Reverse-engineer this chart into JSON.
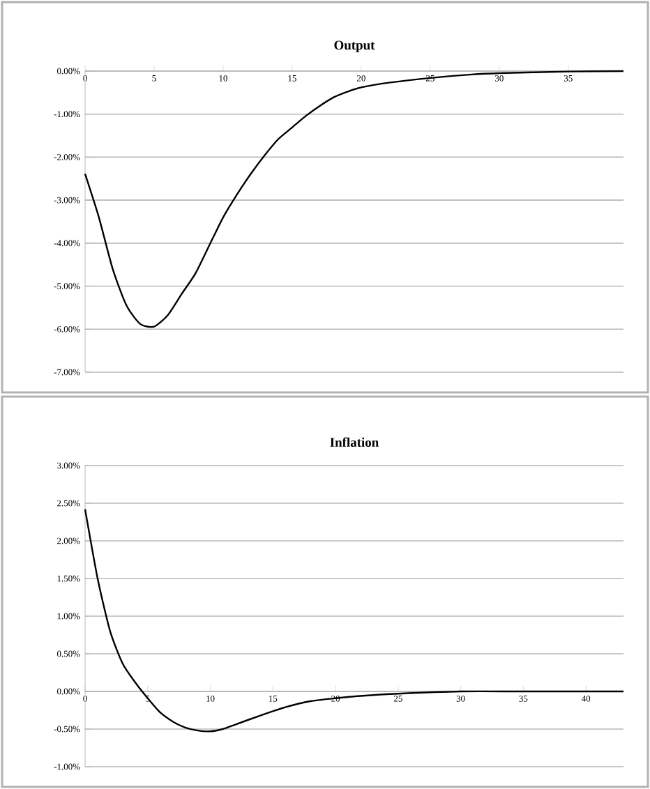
{
  "chart_data": [
    {
      "type": "line",
      "title": "Output",
      "grid": "y",
      "xlim": [
        0,
        39
      ],
      "ylim": [
        -7,
        0
      ],
      "xticks": [
        0,
        5,
        10,
        15,
        20,
        25,
        30,
        35
      ],
      "yticks": [
        {
          "value": 0,
          "label": "0.00%"
        },
        {
          "value": -1,
          "label": "-1.00%"
        },
        {
          "value": -2,
          "label": "-2.00%"
        },
        {
          "value": -3,
          "label": "-3.00%"
        },
        {
          "value": -4,
          "label": "-4.00%"
        },
        {
          "value": -5,
          "label": "-5.00%"
        },
        {
          "value": -6,
          "label": "-6.00%"
        },
        {
          "value": -7,
          "label": "-7.00%"
        }
      ],
      "series": [
        {
          "color": "#000000",
          "x": [
            0,
            1,
            2,
            3,
            4,
            5,
            6,
            7,
            8,
            9,
            10,
            11,
            12,
            13,
            14,
            15,
            16,
            17,
            18,
            19,
            20,
            22,
            25,
            28,
            30,
            35,
            39
          ],
          "values": [
            -2.39,
            -3.4,
            -4.6,
            -5.45,
            -5.88,
            -5.94,
            -5.67,
            -5.18,
            -4.7,
            -4.05,
            -3.4,
            -2.87,
            -2.39,
            -1.96,
            -1.58,
            -1.31,
            -1.04,
            -0.81,
            -0.61,
            -0.48,
            -0.38,
            -0.27,
            -0.16,
            -0.08,
            -0.05,
            -0.01,
            0
          ]
        }
      ]
    },
    {
      "type": "line",
      "title": "Inflation",
      "grid": "y",
      "xlim": [
        0,
        43
      ],
      "ylim": [
        -1,
        3
      ],
      "xticks": [
        0,
        5,
        10,
        15,
        20,
        25,
        30,
        35,
        40
      ],
      "yticks": [
        {
          "value": 3,
          "label": "3.00%"
        },
        {
          "value": 2.5,
          "label": "2.50%"
        },
        {
          "value": 2,
          "label": "2.00%"
        },
        {
          "value": 1.5,
          "label": "1.50%"
        },
        {
          "value": 1,
          "label": "1.00%"
        },
        {
          "value": 0.5,
          "label": "0.50%"
        },
        {
          "value": 0,
          "label": "0.00%"
        },
        {
          "value": -0.5,
          "label": "-0.50%"
        },
        {
          "value": -1,
          "label": "-1.00%"
        }
      ],
      "series": [
        {
          "color": "#000000",
          "x": [
            0,
            1,
            2,
            3,
            4,
            5,
            6,
            7,
            8,
            9,
            10,
            11,
            12,
            14,
            16,
            18,
            20,
            22,
            25,
            30,
            35,
            43
          ],
          "values": [
            2.42,
            1.5,
            0.8,
            0.37,
            0.12,
            -0.09,
            -0.28,
            -0.4,
            -0.48,
            -0.52,
            -0.53,
            -0.5,
            -0.44,
            -0.32,
            -0.21,
            -0.13,
            -0.09,
            -0.06,
            -0.03,
            0,
            0,
            0
          ]
        }
      ]
    }
  ]
}
